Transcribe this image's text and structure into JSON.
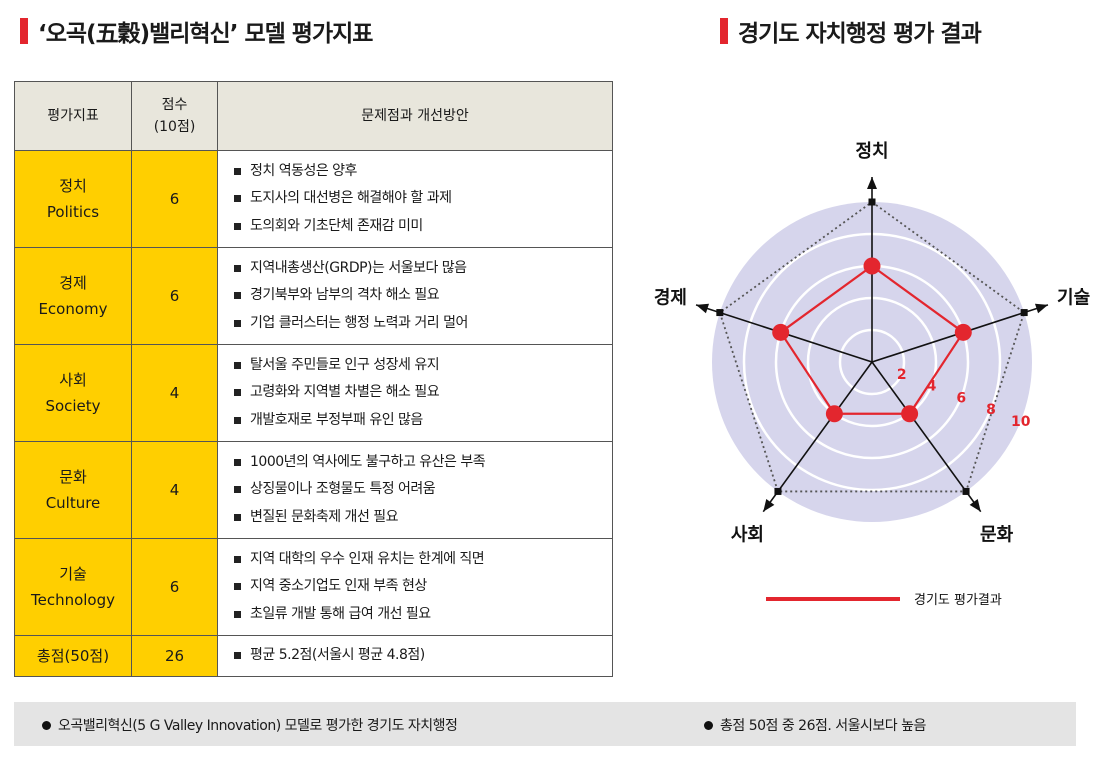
{
  "left_title": "‘오곡(五穀)밸리혁신’ 모델 평가지표",
  "right_title": "경기도 자치행정 평가 결과",
  "table": {
    "headers": {
      "indicator": "평가지표",
      "score_line1": "점수",
      "score_line2": "(10점)",
      "issues": "문제점과 개선방안"
    },
    "rows": [
      {
        "ko": "정치",
        "en": "Politics",
        "score": "6",
        "issues": [
          "정치 역동성은 양후",
          "도지사의 대선병은 해결해야 할 과제",
          "도의회와 기초단체 존재감 미미"
        ]
      },
      {
        "ko": "경제",
        "en": "Economy",
        "score": "6",
        "issues": [
          "지역내총생산(GRDP)는 서울보다 많음",
          "경기북부와 남부의 격차 해소 필요",
          "기업 클러스터는 행정 노력과 거리 멀어"
        ]
      },
      {
        "ko": "사회",
        "en": "Society",
        "score": "4",
        "issues": [
          "탈서울 주민들로 인구 성장세 유지",
          "고령화와 지역별 차별은 해소 필요",
          "개발호재로 부정부패 유인 많음"
        ]
      },
      {
        "ko": "문화",
        "en": "Culture",
        "score": "4",
        "issues": [
          "1000년의 역사에도 불구하고 유산은 부족",
          "상징물이나 조형물도 특정 어려움",
          "변질된 문화축제 개선 필요"
        ]
      },
      {
        "ko": "기술",
        "en": "Technology",
        "score": "6",
        "issues": [
          "지역 대학의 우수 인재 유치는 한계에 직면",
          "지역 중소기업도 인재 부족 현상",
          "초일류 개발 통해 급여 개선 필요"
        ]
      }
    ],
    "total": {
      "label": "총점(50점)",
      "score": "26",
      "note": "평균 5.2점(서울시 평균 4.8점)"
    }
  },
  "chart_data": {
    "type": "radar",
    "axes": [
      "정치",
      "기술",
      "문화",
      "사회",
      "경제"
    ],
    "series": [
      {
        "name": "경기도 평가결과",
        "values": [
          6,
          6,
          4,
          4,
          6
        ]
      }
    ],
    "range": [
      0,
      10
    ],
    "ticks": [
      "2",
      "4",
      "6",
      "8",
      "10"
    ],
    "color": "#e3262e"
  },
  "footer": {
    "left": "오곡밸리혁신(5 G Valley Innovation) 모델로 평가한 경기도 자치행정",
    "right": "총점 50점 중 26점. 서울시보다 높음"
  }
}
